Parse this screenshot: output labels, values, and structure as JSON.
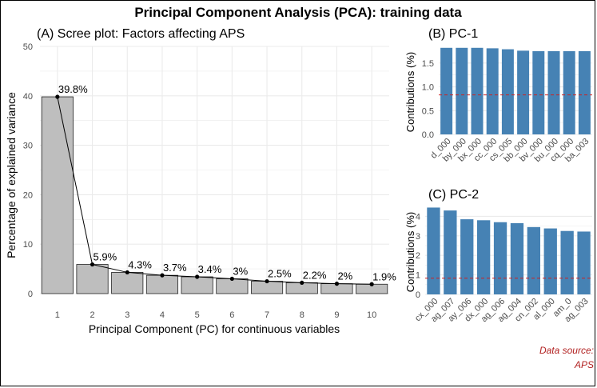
{
  "title": "Principal Component Analysis (PCA): training data",
  "source_line1": "Data source:",
  "source_line2": "APS",
  "colors": {
    "scree_bar": "#bebebe",
    "pc_bar": "#4682b4",
    "ref_line": "#cc2222",
    "grid": "#ebebeb",
    "source_text": "#b22222"
  },
  "chart_data": [
    {
      "type": "bar",
      "title": "(A) Scree plot: Factors affecting APS",
      "xlabel": "Principal Component (PC) for continuous variables",
      "ylabel": "Percentage of explained variance",
      "categories": [
        "1",
        "2",
        "3",
        "4",
        "5",
        "6",
        "7",
        "8",
        "9",
        "10"
      ],
      "values": [
        39.8,
        5.9,
        4.3,
        3.7,
        3.4,
        3.0,
        2.5,
        2.2,
        2.0,
        1.9
      ],
      "labels": [
        "39.8%",
        "5.9%",
        "4.3%",
        "3.7%",
        "3.4%",
        "3%",
        "2.5%",
        "2.2%",
        "2%",
        "1.9%"
      ],
      "ylim": [
        0,
        50
      ],
      "yticks": [
        0,
        10,
        20,
        30,
        40,
        50
      ],
      "overlay": "line with points",
      "grid": true
    },
    {
      "type": "bar",
      "title": "(B) PC-1",
      "xlabel": "",
      "ylabel": "Contributions (%)",
      "categories": [
        "d_000",
        "by_000",
        "bx_000",
        "cc_000",
        "cs_005",
        "bb_000",
        "bv_000",
        "bu_000",
        "cq_000",
        "ba_003"
      ],
      "values": [
        1.82,
        1.82,
        1.82,
        1.81,
        1.79,
        1.76,
        1.75,
        1.75,
        1.75,
        1.75
      ],
      "ylim": [
        0,
        1.85
      ],
      "yticks": [
        0.0,
        0.5,
        1.0,
        1.5
      ],
      "ytick_labels": [
        "0.0",
        "0.5",
        "1.0",
        "1.5"
      ],
      "reference_line": 0.83,
      "grid": true
    },
    {
      "type": "bar",
      "title": "(C) PC-2",
      "xlabel": "",
      "ylabel": "Contributions (%)",
      "categories": [
        "cx_000",
        "ag_007",
        "ay_006",
        "dx_000",
        "ag_006",
        "ag_004",
        "cn_002",
        "al_000",
        "am_0",
        "ag_003"
      ],
      "values": [
        4.45,
        4.3,
        3.85,
        3.8,
        3.7,
        3.65,
        3.45,
        3.38,
        3.25,
        3.22
      ],
      "ylim": [
        0,
        4.55
      ],
      "yticks": [
        0,
        1,
        2,
        3,
        4
      ],
      "ytick_labels": [
        "0",
        "1",
        "2",
        "3",
        "4"
      ],
      "reference_line": 0.83,
      "grid": true
    }
  ]
}
